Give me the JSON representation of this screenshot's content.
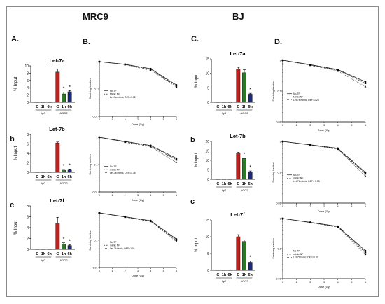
{
  "headers": {
    "left": "MRC9",
    "right": "BJ"
  },
  "panel_labels": {
    "A": "A.",
    "B": "B.",
    "C": "C.",
    "D": "D."
  },
  "row_labels": {
    "b_left": "b",
    "c_left": "c",
    "b_right": "b",
    "c_right": "c"
  },
  "colors": {
    "igG": "#7a7a7a",
    "C": "#b8231f",
    "h1": "#2d7a25",
    "h6": "#1b2a7a",
    "line": "#222222"
  },
  "chart_data": [
    {
      "id": "bar-A-let7a",
      "type": "bar",
      "title": "Let-7a",
      "ylabel": "% Input",
      "ylim": [
        0,
        10
      ],
      "yticks": [
        0,
        2,
        4,
        6,
        8,
        10
      ],
      "categories": [
        "C",
        "1h",
        "6h",
        "C",
        "1h",
        "6h"
      ],
      "groups": [
        "IgG",
        "AGO2"
      ],
      "values": [
        0.05,
        0.05,
        0.05,
        8.3,
        2.3,
        2.9
      ],
      "errors": [
        0,
        0,
        0,
        0.8,
        0.5,
        0.3
      ],
      "stars": [
        "",
        "",
        "",
        "",
        "*",
        "*"
      ]
    },
    {
      "id": "bar-A-let7b",
      "type": "bar",
      "title": "Let-7b",
      "ylabel": "% Input",
      "ylim": [
        0,
        8
      ],
      "yticks": [
        0,
        2,
        4,
        6,
        8
      ],
      "categories": [
        "C",
        "1h",
        "6h",
        "C",
        "1h",
        "6h"
      ],
      "groups": [
        "IgG",
        "AGO2"
      ],
      "values": [
        0.05,
        0.05,
        0.05,
        6.2,
        0.5,
        0.6
      ],
      "errors": [
        0,
        0,
        0,
        0.2,
        0.1,
        0.1
      ],
      "stars": [
        "",
        "",
        "",
        "",
        "*",
        "*"
      ]
    },
    {
      "id": "bar-A-let7f",
      "type": "bar",
      "title": "Let-7f",
      "ylabel": "% Input",
      "ylim": [
        0,
        8
      ],
      "yticks": [
        0,
        2,
        4,
        6,
        8
      ],
      "categories": [
        "C",
        "1h",
        "6h",
        "C",
        "1h",
        "6h"
      ],
      "groups": [
        "IgG",
        "AGO2"
      ],
      "values": [
        0.05,
        0.05,
        0.05,
        4.8,
        1.0,
        0.7
      ],
      "errors": [
        0,
        0,
        0,
        1.1,
        0.2,
        0.15
      ],
      "stars": [
        "",
        "",
        "",
        "",
        "*",
        "*"
      ]
    },
    {
      "id": "bar-C-let7a",
      "type": "bar",
      "title": "Let-7a",
      "ylabel": "% Input",
      "ylim": [
        0,
        15
      ],
      "yticks": [
        0,
        5,
        10,
        15
      ],
      "categories": [
        "C",
        "1h",
        "6h",
        "C",
        "1h",
        "6h"
      ],
      "groups": [
        "IgG",
        "AGO2"
      ],
      "values": [
        0.1,
        0.1,
        0.1,
        11.5,
        10.2,
        2.8
      ],
      "errors": [
        0,
        0,
        0,
        0.6,
        1.1,
        0.3
      ],
      "stars": [
        "",
        "",
        "",
        "",
        "",
        "*"
      ]
    },
    {
      "id": "bar-C-let7b",
      "type": "bar",
      "title": "Let-7b",
      "ylabel": "% Input",
      "ylim": [
        0,
        20
      ],
      "yticks": [
        0,
        5,
        10,
        15,
        20
      ],
      "categories": [
        "C",
        "1h",
        "6h",
        "C",
        "1h",
        "6h"
      ],
      "groups": [
        "IgG",
        "AGO2"
      ],
      "values": [
        0.1,
        0.1,
        0.1,
        13.8,
        11.0,
        4.0
      ],
      "errors": [
        0,
        0,
        0,
        0.5,
        0.3,
        0.4
      ],
      "stars": [
        "",
        "",
        "",
        "",
        "*",
        "*"
      ]
    },
    {
      "id": "bar-C-let7f",
      "type": "bar",
      "title": "Let-7f",
      "ylabel": "% Input",
      "ylim": [
        0,
        15
      ],
      "yticks": [
        0,
        5,
        10,
        15
      ],
      "categories": [
        "C",
        "1h",
        "6h",
        "C",
        "1h",
        "6h"
      ],
      "groups": [
        "IgG",
        "AGO2"
      ],
      "values": [
        0.1,
        0.1,
        0.1,
        10.0,
        8.6,
        2.4
      ],
      "errors": [
        0,
        0,
        0,
        0.6,
        0.5,
        0.4
      ],
      "stars": [
        "",
        "",
        "",
        "",
        "",
        "*"
      ]
    },
    {
      "id": "line-B-1",
      "type": "line",
      "xlabel": "Dose (Gy)",
      "ylabel": "Surviving fraction",
      "xlim": [
        0,
        6
      ],
      "ylim": [
        0.01,
        1
      ],
      "yscale": "log",
      "xticks": [
        0,
        1,
        2,
        3,
        4,
        5,
        6
      ],
      "x": [
        0,
        2,
        4,
        6
      ],
      "series": [
        {
          "name": "No-TF",
          "values": [
            1,
            0.8,
            0.55,
            0.14
          ]
        },
        {
          "name": "Mimic NF",
          "values": [
            1,
            0.79,
            0.52,
            0.13
          ]
        },
        {
          "name": "Let-7a mimic, DEF=1.02",
          "values": [
            1,
            0.78,
            0.48,
            0.12
          ]
        }
      ]
    },
    {
      "id": "line-B-2",
      "type": "line",
      "xlabel": "Dose (Gy)",
      "ylabel": "Surviving fraction",
      "xlim": [
        0,
        6
      ],
      "ylim": [
        0.01,
        1
      ],
      "yscale": "log",
      "xticks": [
        0,
        1,
        2,
        3,
        4,
        5,
        6
      ],
      "x": [
        0,
        2,
        4,
        6
      ],
      "series": [
        {
          "name": "No-TF",
          "values": [
            1,
            0.7,
            0.5,
            0.17
          ]
        },
        {
          "name": "mimic NF",
          "values": [
            1,
            0.68,
            0.48,
            0.15
          ]
        },
        {
          "name": "Let-7b mimic, DEF=1.35",
          "values": [
            1,
            0.66,
            0.45,
            0.12
          ]
        }
      ]
    },
    {
      "id": "line-B-3",
      "type": "line",
      "xlabel": "Dose (Gy)",
      "ylabel": "Surviving fraction",
      "xlim": [
        0,
        6
      ],
      "ylim": [
        0.01,
        1
      ],
      "yscale": "log",
      "xticks": [
        0,
        1,
        2,
        3,
        4,
        5,
        6
      ],
      "x": [
        0,
        2,
        4,
        6
      ],
      "series": [
        {
          "name": "No-TF",
          "values": [
            1,
            0.72,
            0.52,
            0.11
          ]
        },
        {
          "name": "mimic NF",
          "values": [
            1,
            0.71,
            0.5,
            0.1
          ]
        },
        {
          "name": "Let-7f mimic, DEF=1.01",
          "values": [
            1,
            0.7,
            0.49,
            0.09
          ]
        }
      ]
    },
    {
      "id": "line-D-1",
      "type": "line",
      "xlabel": "Dose (Gy)",
      "ylabel": "Surviving fraction",
      "xlim": [
        0,
        6
      ],
      "ylim": [
        0.01,
        1
      ],
      "yscale": "log",
      "xticks": [
        0,
        1,
        2,
        3,
        4,
        5,
        6
      ],
      "x": [
        0,
        2,
        4,
        6
      ],
      "series": [
        {
          "name": "No-TF",
          "values": [
            1,
            0.72,
            0.5,
            0.2
          ]
        },
        {
          "name": "Mimic NF",
          "values": [
            1,
            0.71,
            0.48,
            0.18
          ]
        },
        {
          "name": "Let-7a mimic, DEF=1.28",
          "values": [
            1,
            0.69,
            0.45,
            0.14
          ]
        }
      ]
    },
    {
      "id": "line-D-2",
      "type": "line",
      "xlabel": "Dose (Gy)",
      "ylabel": "Surviving fraction",
      "xlim": [
        0,
        6
      ],
      "ylim": [
        0.01,
        1
      ],
      "yscale": "log",
      "xticks": [
        0,
        1,
        2,
        3,
        4,
        5,
        6
      ],
      "x": [
        0,
        2,
        4,
        6
      ],
      "series": [
        {
          "name": "No-TF",
          "values": [
            1,
            0.78,
            0.6,
            0.1
          ]
        },
        {
          "name": "mimic NF",
          "values": [
            1,
            0.77,
            0.58,
            0.09
          ]
        },
        {
          "name": "Let-7b mimic, DEF= 1.53",
          "values": [
            1,
            0.76,
            0.56,
            0.075
          ]
        }
      ]
    },
    {
      "id": "line-D-3",
      "type": "line",
      "xlabel": "Dose (Gy)",
      "ylabel": "Surviving fraction",
      "xlim": [
        0,
        6
      ],
      "ylim": [
        0.01,
        1
      ],
      "yscale": "log",
      "xticks": [
        0,
        1,
        2,
        3,
        4,
        5,
        6
      ],
      "x": [
        0,
        2,
        4,
        6
      ],
      "series": [
        {
          "name": "No-TF",
          "values": [
            1,
            0.75,
            0.55,
            0.085
          ]
        },
        {
          "name": "mimic NF",
          "values": [
            1,
            0.74,
            0.54,
            0.075
          ]
        },
        {
          "name": "Let-7f mimic, DEF=1.32",
          "values": [
            1,
            0.73,
            0.52,
            0.065
          ]
        }
      ]
    }
  ]
}
